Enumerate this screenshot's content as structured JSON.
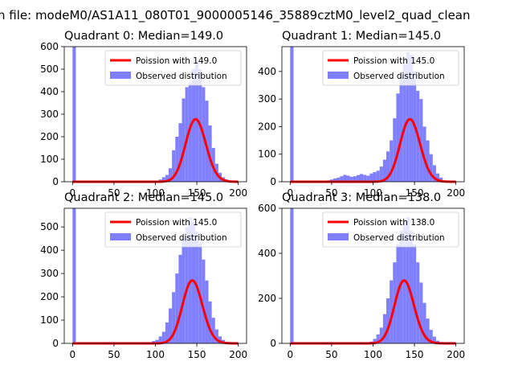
{
  "figure": {
    "suptitle": "n file: modeM0/AS1A11_080T01_9000005146_35889cztM0_level2_quad_clean"
  },
  "chart_data": [
    {
      "type": "bar",
      "title": "Quadrant 0: Median=149.0",
      "median": 149.0,
      "xlim": [
        -10,
        210
      ],
      "ylim": [
        0,
        600
      ],
      "xticks": [
        0,
        50,
        100,
        150,
        200
      ],
      "yticks": [
        0,
        100,
        200,
        300,
        400,
        500,
        600
      ],
      "legend_loc": "upper right",
      "series": [
        {
          "name": "Poission with 149.0",
          "kind": "line",
          "color": "#ff0000",
          "lambda": 149.0,
          "N": 8500
        },
        {
          "name": "Observed distribution",
          "kind": "hist",
          "color": "#8080ff",
          "bin_width": 4,
          "bin_edges_start": [
            0,
            4,
            8,
            12,
            16,
            20,
            24,
            28,
            32,
            36,
            40,
            44,
            48,
            52,
            56,
            60,
            64,
            68,
            72,
            76,
            80,
            84,
            88,
            92,
            96,
            100,
            104,
            108,
            112,
            116,
            120,
            124,
            128,
            132,
            136,
            140,
            144,
            148,
            152,
            156,
            160,
            164,
            168,
            172,
            176,
            180,
            184,
            188,
            192,
            196
          ],
          "values": [
            600,
            0,
            0,
            0,
            0,
            0,
            0,
            0,
            0,
            0,
            0,
            0,
            0,
            0,
            0,
            0,
            0,
            0,
            0,
            0,
            0,
            0,
            0,
            0,
            0,
            3,
            10,
            20,
            30,
            60,
            140,
            200,
            260,
            370,
            420,
            440,
            500,
            540,
            500,
            420,
            360,
            250,
            150,
            80,
            40,
            20,
            10,
            4,
            2,
            0
          ]
        }
      ]
    },
    {
      "type": "bar",
      "title": "Quadrant 1: Median=145.0",
      "median": 145.0,
      "xlim": [
        -10,
        210
      ],
      "ylim": [
        0,
        490
      ],
      "xticks": [
        0,
        50,
        100,
        150,
        200
      ],
      "yticks": [
        0,
        100,
        200,
        300,
        400
      ],
      "legend_loc": "upper right",
      "series": [
        {
          "name": "Poission with 145.0",
          "kind": "line",
          "color": "#ff0000",
          "lambda": 145.0,
          "N": 6850
        },
        {
          "name": "Observed distribution",
          "kind": "hist",
          "color": "#8080ff",
          "bin_width": 4,
          "bin_edges_start": [
            0,
            4,
            8,
            12,
            16,
            20,
            24,
            28,
            32,
            36,
            40,
            44,
            48,
            52,
            56,
            60,
            64,
            68,
            72,
            76,
            80,
            84,
            88,
            92,
            96,
            100,
            104,
            108,
            112,
            116,
            120,
            124,
            128,
            132,
            136,
            140,
            144,
            148,
            152,
            156,
            160,
            164,
            168,
            172,
            176,
            180,
            184,
            188,
            192,
            196
          ],
          "values": [
            490,
            0,
            0,
            0,
            0,
            0,
            0,
            0,
            0,
            0,
            3,
            5,
            8,
            12,
            15,
            20,
            25,
            22,
            18,
            20,
            24,
            28,
            25,
            22,
            30,
            35,
            40,
            55,
            80,
            110,
            150,
            230,
            320,
            380,
            430,
            470,
            460,
            400,
            330,
            300,
            200,
            150,
            100,
            60,
            30,
            15,
            5,
            2,
            0,
            0
          ]
        }
      ]
    },
    {
      "type": "bar",
      "title": "Quadrant 2: Median=145.0",
      "median": 145.0,
      "xlim": [
        -10,
        210
      ],
      "ylim": [
        0,
        580
      ],
      "xticks": [
        0,
        50,
        100,
        150,
        200
      ],
      "yticks": [
        0,
        100,
        200,
        300,
        400,
        500
      ],
      "legend_loc": "upper right",
      "series": [
        {
          "name": "Poission with 145.0",
          "kind": "line",
          "color": "#ff0000",
          "lambda": 145.0,
          "N": 8150
        },
        {
          "name": "Observed distribution",
          "kind": "hist",
          "color": "#8080ff",
          "bin_width": 4,
          "bin_edges_start": [
            0,
            4,
            8,
            12,
            16,
            20,
            24,
            28,
            32,
            36,
            40,
            44,
            48,
            52,
            56,
            60,
            64,
            68,
            72,
            76,
            80,
            84,
            88,
            92,
            96,
            100,
            104,
            108,
            112,
            116,
            120,
            124,
            128,
            132,
            136,
            140,
            144,
            148,
            152,
            156,
            160,
            164,
            168,
            172,
            176,
            180,
            184,
            188,
            192,
            196
          ],
          "values": [
            580,
            0,
            0,
            0,
            0,
            0,
            0,
            0,
            0,
            0,
            0,
            0,
            0,
            0,
            0,
            0,
            0,
            0,
            0,
            0,
            0,
            0,
            2,
            5,
            10,
            15,
            30,
            50,
            90,
            150,
            220,
            300,
            380,
            450,
            500,
            540,
            520,
            480,
            430,
            360,
            270,
            180,
            110,
            60,
            30,
            15,
            6,
            2,
            0,
            0
          ]
        }
      ]
    },
    {
      "type": "bar",
      "title": "Quadrant 3: Median=138.0",
      "median": 138.0,
      "xlim": [
        -10,
        210
      ],
      "ylim": [
        0,
        600
      ],
      "xticks": [
        0,
        50,
        100,
        150,
        200
      ],
      "yticks": [
        0,
        200,
        400,
        600
      ],
      "legend_loc": "upper right",
      "series": [
        {
          "name": "Poission with 138.0",
          "kind": "line",
          "color": "#ff0000",
          "lambda": 138.0,
          "N": 8230
        },
        {
          "name": "Observed distribution",
          "kind": "hist",
          "color": "#8080ff",
          "bin_width": 4,
          "bin_edges_start": [
            0,
            4,
            8,
            12,
            16,
            20,
            24,
            28,
            32,
            36,
            40,
            44,
            48,
            52,
            56,
            60,
            64,
            68,
            72,
            76,
            80,
            84,
            88,
            92,
            96,
            100,
            104,
            108,
            112,
            116,
            120,
            124,
            128,
            132,
            136,
            140,
            144,
            148,
            152,
            156,
            160,
            164,
            168,
            172,
            176,
            180,
            184,
            188,
            192,
            196
          ],
          "values": [
            600,
            0,
            0,
            0,
            0,
            0,
            0,
            0,
            0,
            0,
            0,
            0,
            0,
            0,
            0,
            0,
            0,
            0,
            0,
            0,
            0,
            0,
            2,
            4,
            8,
            20,
            40,
            70,
            130,
            200,
            280,
            360,
            440,
            500,
            540,
            560,
            500,
            440,
            360,
            270,
            180,
            110,
            60,
            30,
            12,
            5,
            2,
            0,
            0,
            0
          ]
        }
      ]
    }
  ]
}
